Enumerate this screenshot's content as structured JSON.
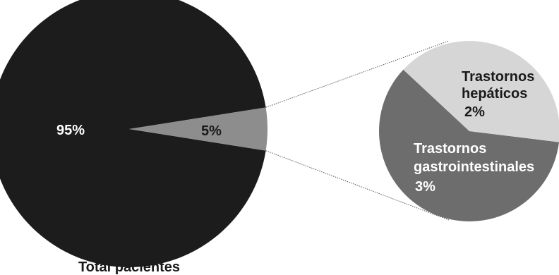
{
  "chart_data": [
    {
      "type": "pie",
      "caption": "Total pacientes",
      "slices": [
        {
          "label": "95%",
          "value": 95,
          "color": "#1c1c1c"
        },
        {
          "label": "5%",
          "value": 5,
          "color": "#8d8d8d"
        }
      ]
    },
    {
      "type": "pie",
      "slices": [
        {
          "name": "Trastornos hepáticos",
          "name_lines": [
            "Trastornos",
            "hepáticos"
          ],
          "label": "2%",
          "value": 2,
          "color": "#d6d6d6"
        },
        {
          "name": "Trastornos gastrointestinales",
          "name_lines": [
            "Trastornos",
            "gastrointestinales"
          ],
          "label": "3%",
          "value": 3,
          "color": "#6d6d6d"
        }
      ]
    }
  ]
}
